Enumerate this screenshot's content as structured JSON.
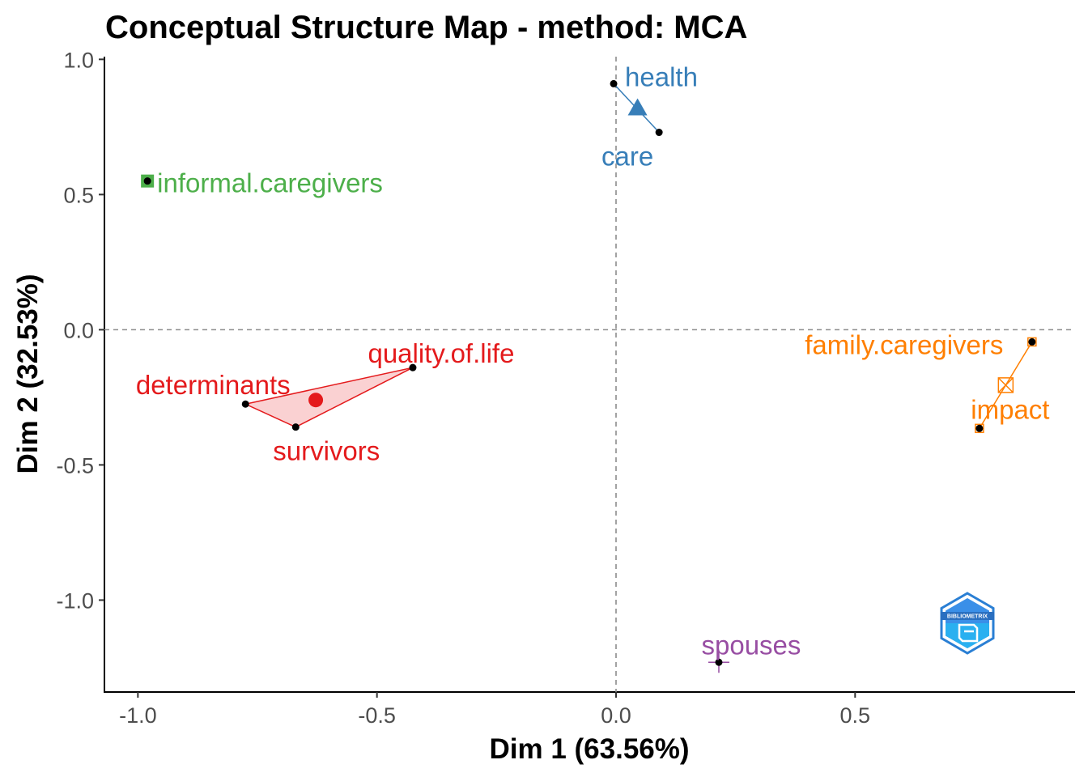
{
  "chart_data": {
    "type": "scatter",
    "title": "Conceptual Structure Map - method: MCA",
    "xlabel": "Dim 1 (63.56%)",
    "ylabel": "Dim 2 (32.53%)",
    "xlim": [
      -1.07,
      0.96
    ],
    "ylim": [
      -1.34,
      1.01
    ],
    "x_ticks": [
      -1.0,
      -0.5,
      0.0,
      0.5
    ],
    "x_tick_labels": [
      "-1.0",
      "-0.5",
      "0.0",
      "0.5"
    ],
    "y_ticks": [
      1.0,
      0.5,
      0.0,
      -0.5,
      -1.0
    ],
    "y_tick_labels": [
      "1.0",
      "0.5",
      "0.0",
      "-0.5",
      "-1.0"
    ],
    "reference_lines": {
      "x": 0,
      "y": 0,
      "style": "dashed"
    },
    "grid": false,
    "clusters": [
      {
        "color": "#e41a1c",
        "marker": "circle",
        "centroid": [
          -0.628,
          -0.26
        ],
        "points": [
          {
            "label": "quality.of.life",
            "x": -0.425,
            "y": -0.14
          },
          {
            "label": "determinants",
            "x": -0.775,
            "y": -0.275
          },
          {
            "label": "survivors",
            "x": -0.67,
            "y": -0.36
          }
        ]
      },
      {
        "color": "#377eb8",
        "marker": "triangle",
        "centroid": [
          0.045,
          0.82
        ],
        "points": [
          {
            "label": "health",
            "x": -0.005,
            "y": 0.91
          },
          {
            "label": "care",
            "x": 0.09,
            "y": 0.73
          }
        ]
      },
      {
        "color": "#4daf4a",
        "marker": "square",
        "centroid": [
          -0.98,
          0.55
        ],
        "points": [
          {
            "label": "informal.caregivers",
            "x": -0.98,
            "y": 0.55
          }
        ]
      },
      {
        "color": "#984ea3",
        "marker": "plus",
        "centroid": [
          0.215,
          -1.23
        ],
        "points": [
          {
            "label": "spouses",
            "x": 0.215,
            "y": -1.23
          }
        ]
      },
      {
        "color": "#ff7f00",
        "marker": "square-x",
        "centroid": [
          0.815,
          -0.205
        ],
        "points": [
          {
            "label": "family.caregivers",
            "x": 0.87,
            "y": -0.045
          },
          {
            "label": "impact",
            "x": 0.76,
            "y": -0.365
          }
        ]
      }
    ]
  },
  "logo": {
    "text": "BIBLIOMETRIX",
    "color": "#2a7fd4"
  }
}
